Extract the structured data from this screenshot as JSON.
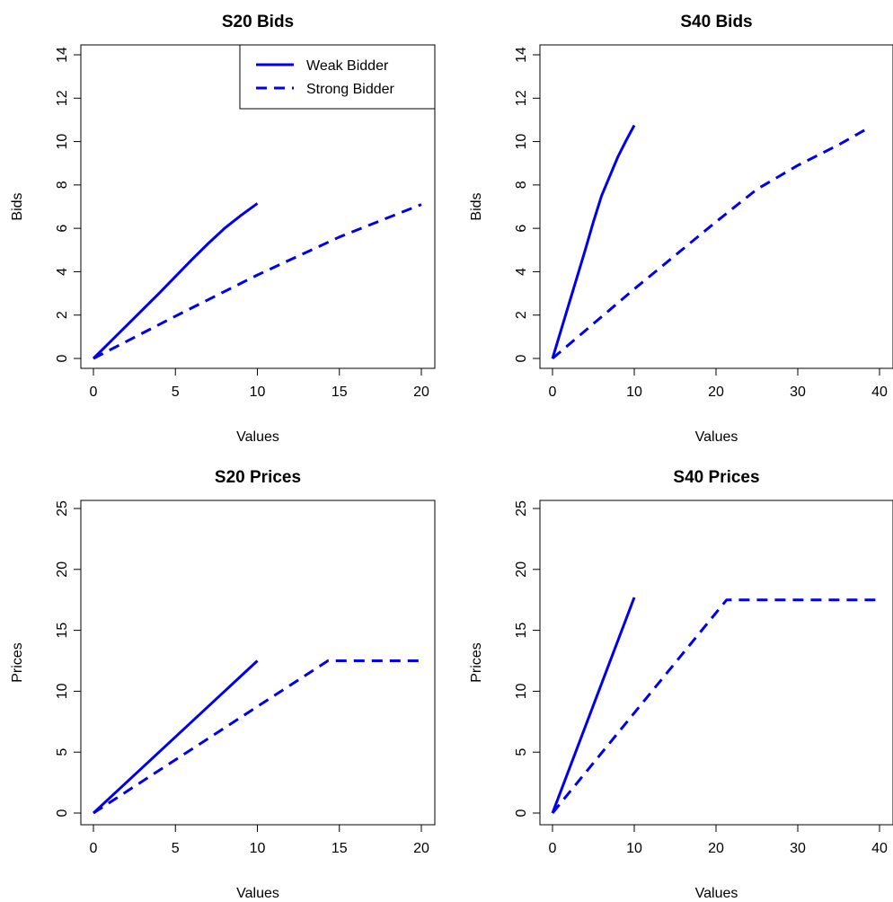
{
  "chart_data": [
    {
      "type": "line",
      "title": "S20 Bids",
      "xlabel": "Values",
      "ylabel": "Bids",
      "xlim": [
        0,
        20
      ],
      "ylim": [
        0,
        15
      ],
      "xticks": [
        0,
        5,
        10,
        15,
        20
      ],
      "yticks": [
        0,
        2,
        4,
        6,
        8,
        10,
        12,
        14
      ],
      "xtick_labels": [
        "0",
        "5",
        "10",
        "15",
        "20"
      ],
      "ytick_labels": [
        "0",
        "2",
        "4",
        "6",
        "8",
        "10",
        "12",
        "14"
      ],
      "grid": false,
      "legend": {
        "placement": "top-right",
        "entries": [
          "Weak Bidder",
          "Strong Bidder"
        ]
      },
      "series": [
        {
          "name": "Weak Bidder",
          "style": "solid",
          "color": "#0000ee",
          "x": [
            0,
            2,
            4,
            6,
            7,
            8,
            9,
            10
          ],
          "y": [
            0,
            1.5,
            3.0,
            4.55,
            5.3,
            6.0,
            6.6,
            7.15
          ]
        },
        {
          "name": "Strong Bidder",
          "style": "dashed",
          "color": "#0000ee",
          "x": [
            0,
            5,
            10,
            15,
            20
          ],
          "y": [
            0,
            1.95,
            3.85,
            5.6,
            7.1
          ]
        }
      ]
    },
    {
      "type": "line",
      "title": "S40 Bids",
      "xlabel": "Values",
      "ylabel": "Bids",
      "xlim": [
        0,
        40
      ],
      "ylim": [
        0,
        15
      ],
      "xticks": [
        0,
        10,
        20,
        30,
        40
      ],
      "yticks": [
        0,
        2,
        4,
        6,
        8,
        10,
        12,
        14
      ],
      "xtick_labels": [
        "0",
        "10",
        "20",
        "30",
        "40"
      ],
      "ytick_labels": [
        "0",
        "2",
        "4",
        "6",
        "8",
        "10",
        "12",
        "14"
      ],
      "grid": false,
      "series": [
        {
          "name": "Weak Bidder",
          "style": "solid",
          "color": "#0000ee",
          "x": [
            0,
            2,
            4,
            5,
            6,
            7,
            8,
            9,
            10
          ],
          "y": [
            0,
            2.5,
            5.0,
            6.3,
            7.5,
            8.4,
            9.3,
            10.05,
            10.75
          ]
        },
        {
          "name": "Strong Bidder",
          "style": "dashed",
          "color": "#0000ee",
          "x": [
            0,
            10,
            20,
            25,
            30,
            35,
            38.5
          ],
          "y": [
            0,
            3.2,
            6.3,
            7.8,
            8.9,
            9.85,
            10.6
          ]
        }
      ]
    },
    {
      "type": "line",
      "title": "S20 Prices",
      "xlabel": "Values",
      "ylabel": "Prices",
      "xlim": [
        0,
        20
      ],
      "ylim": [
        0,
        25
      ],
      "xticks": [
        0,
        5,
        10,
        15,
        20
      ],
      "yticks": [
        0,
        5,
        10,
        15,
        20,
        25
      ],
      "xtick_labels": [
        "0",
        "5",
        "10",
        "15",
        "20"
      ],
      "ytick_labels": [
        "0",
        "5",
        "10",
        "15",
        "20",
        "25"
      ],
      "grid": false,
      "series": [
        {
          "name": "Weak Bidder",
          "style": "solid",
          "color": "#0000ee",
          "x": [
            0,
            10
          ],
          "y": [
            0,
            12.5
          ]
        },
        {
          "name": "Strong Bidder",
          "style": "dashed",
          "color": "#0000ee",
          "x": [
            0,
            14.3,
            20
          ],
          "y": [
            0,
            12.5,
            12.5
          ]
        }
      ]
    },
    {
      "type": "line",
      "title": "S40 Prices",
      "xlabel": "Values",
      "ylabel": "Prices",
      "xlim": [
        0,
        40
      ],
      "ylim": [
        0,
        25
      ],
      "xticks": [
        0,
        10,
        20,
        30,
        40
      ],
      "yticks": [
        0,
        5,
        10,
        15,
        20,
        25
      ],
      "xtick_labels": [
        "0",
        "10",
        "20",
        "30",
        "40"
      ],
      "ytick_labels": [
        "0",
        "5",
        "10",
        "15",
        "20",
        "25"
      ],
      "grid": false,
      "series": [
        {
          "name": "Weak Bidder",
          "style": "solid",
          "color": "#0000ee",
          "x": [
            0,
            10
          ],
          "y": [
            0,
            17.7
          ]
        },
        {
          "name": "Strong Bidder",
          "style": "dashed",
          "color": "#0000ee",
          "x": [
            0,
            21.3,
            40
          ],
          "y": [
            0,
            17.5,
            17.5
          ]
        }
      ]
    }
  ]
}
